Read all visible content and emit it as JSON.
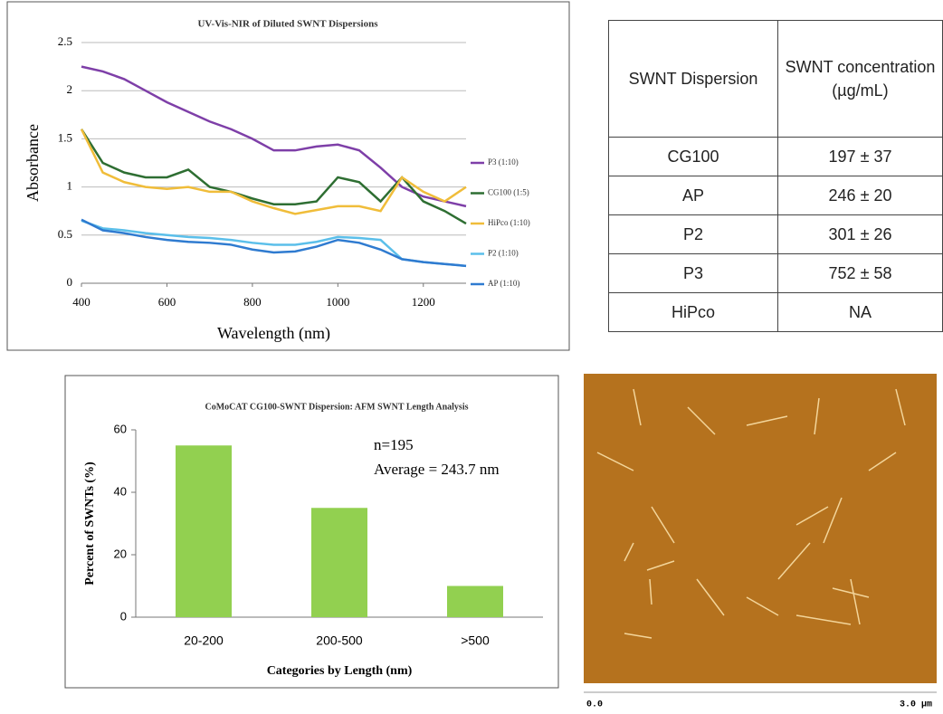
{
  "chart_data": [
    {
      "type": "line",
      "title": "UV-Vis-NIR of Diluted SWNT Dispersions",
      "xlabel": "Wavelength (nm)",
      "ylabel": "Absorbance",
      "x": [
        400,
        450,
        500,
        550,
        600,
        650,
        700,
        750,
        800,
        850,
        900,
        950,
        1000,
        1050,
        1100,
        1150,
        1200,
        1250,
        1300
      ],
      "xlim": [
        400,
        1300
      ],
      "xticks": [
        400,
        600,
        800,
        1000,
        1200
      ],
      "ylim": [
        0,
        2.5
      ],
      "yticks": [
        0,
        0.5,
        1,
        1.5,
        2,
        2.5
      ],
      "grid": true,
      "legend": "right",
      "series": [
        {
          "name": "P3 (1:10)",
          "color": "#7e3fa8",
          "values": [
            2.25,
            2.2,
            2.12,
            2.0,
            1.88,
            1.78,
            1.68,
            1.6,
            1.5,
            1.38,
            1.38,
            1.42,
            1.44,
            1.38,
            1.2,
            1.0,
            0.9,
            0.85,
            0.8
          ]
        },
        {
          "name": "CG100 (1:5)",
          "color": "#2e6e32",
          "values": [
            1.6,
            1.25,
            1.15,
            1.1,
            1.1,
            1.18,
            1.0,
            0.95,
            0.88,
            0.82,
            0.82,
            0.85,
            1.1,
            1.05,
            0.85,
            1.1,
            0.85,
            0.75,
            0.62
          ]
        },
        {
          "name": "HiPco (1:10)",
          "color": "#f0bd3a",
          "values": [
            1.6,
            1.15,
            1.05,
            1.0,
            0.98,
            1.0,
            0.95,
            0.95,
            0.85,
            0.78,
            0.72,
            0.76,
            0.8,
            0.8,
            0.75,
            1.1,
            0.95,
            0.85,
            1.0
          ]
        },
        {
          "name": "P2 (1:10)",
          "color": "#5bbfea",
          "values": [
            0.65,
            0.57,
            0.55,
            0.52,
            0.5,
            0.48,
            0.47,
            0.45,
            0.42,
            0.4,
            0.4,
            0.43,
            0.48,
            0.47,
            0.45,
            0.25,
            0.22,
            0.2,
            0.18
          ]
        },
        {
          "name": "AP (1:10)",
          "color": "#2f7bd0",
          "values": [
            0.66,
            0.55,
            0.52,
            0.48,
            0.45,
            0.43,
            0.42,
            0.4,
            0.35,
            0.32,
            0.33,
            0.38,
            0.45,
            0.42,
            0.35,
            0.25,
            0.22,
            0.2,
            0.18
          ]
        }
      ]
    },
    {
      "type": "bar",
      "title": "CoMoCAT CG100-SWNT Dispersion: AFM SWNT Length Analysis",
      "xlabel": "Categories by Length (nm)",
      "ylabel": "Percent of SWNTs (%)",
      "categories": [
        "20-200",
        "200-500",
        ">500"
      ],
      "values": [
        55,
        35,
        10
      ],
      "color": "#92d050",
      "ylim": [
        0,
        60
      ],
      "yticks": [
        0,
        20,
        40,
        60
      ],
      "annotations": [
        "n=195",
        "Average = 243.7 nm"
      ]
    }
  ],
  "table": {
    "header": [
      "SWNT Dispersion",
      "SWNT concentration (µg/mL)"
    ],
    "rows": [
      [
        "CG100",
        "197 ± 37"
      ],
      [
        "AP",
        "246 ± 20"
      ],
      [
        "P2",
        "301 ± 26"
      ],
      [
        "P3",
        "752 ± 58"
      ],
      [
        "HiPco",
        "NA"
      ]
    ]
  },
  "image": {
    "scale_start": "0.0",
    "scale_end": "3.0 µm"
  }
}
